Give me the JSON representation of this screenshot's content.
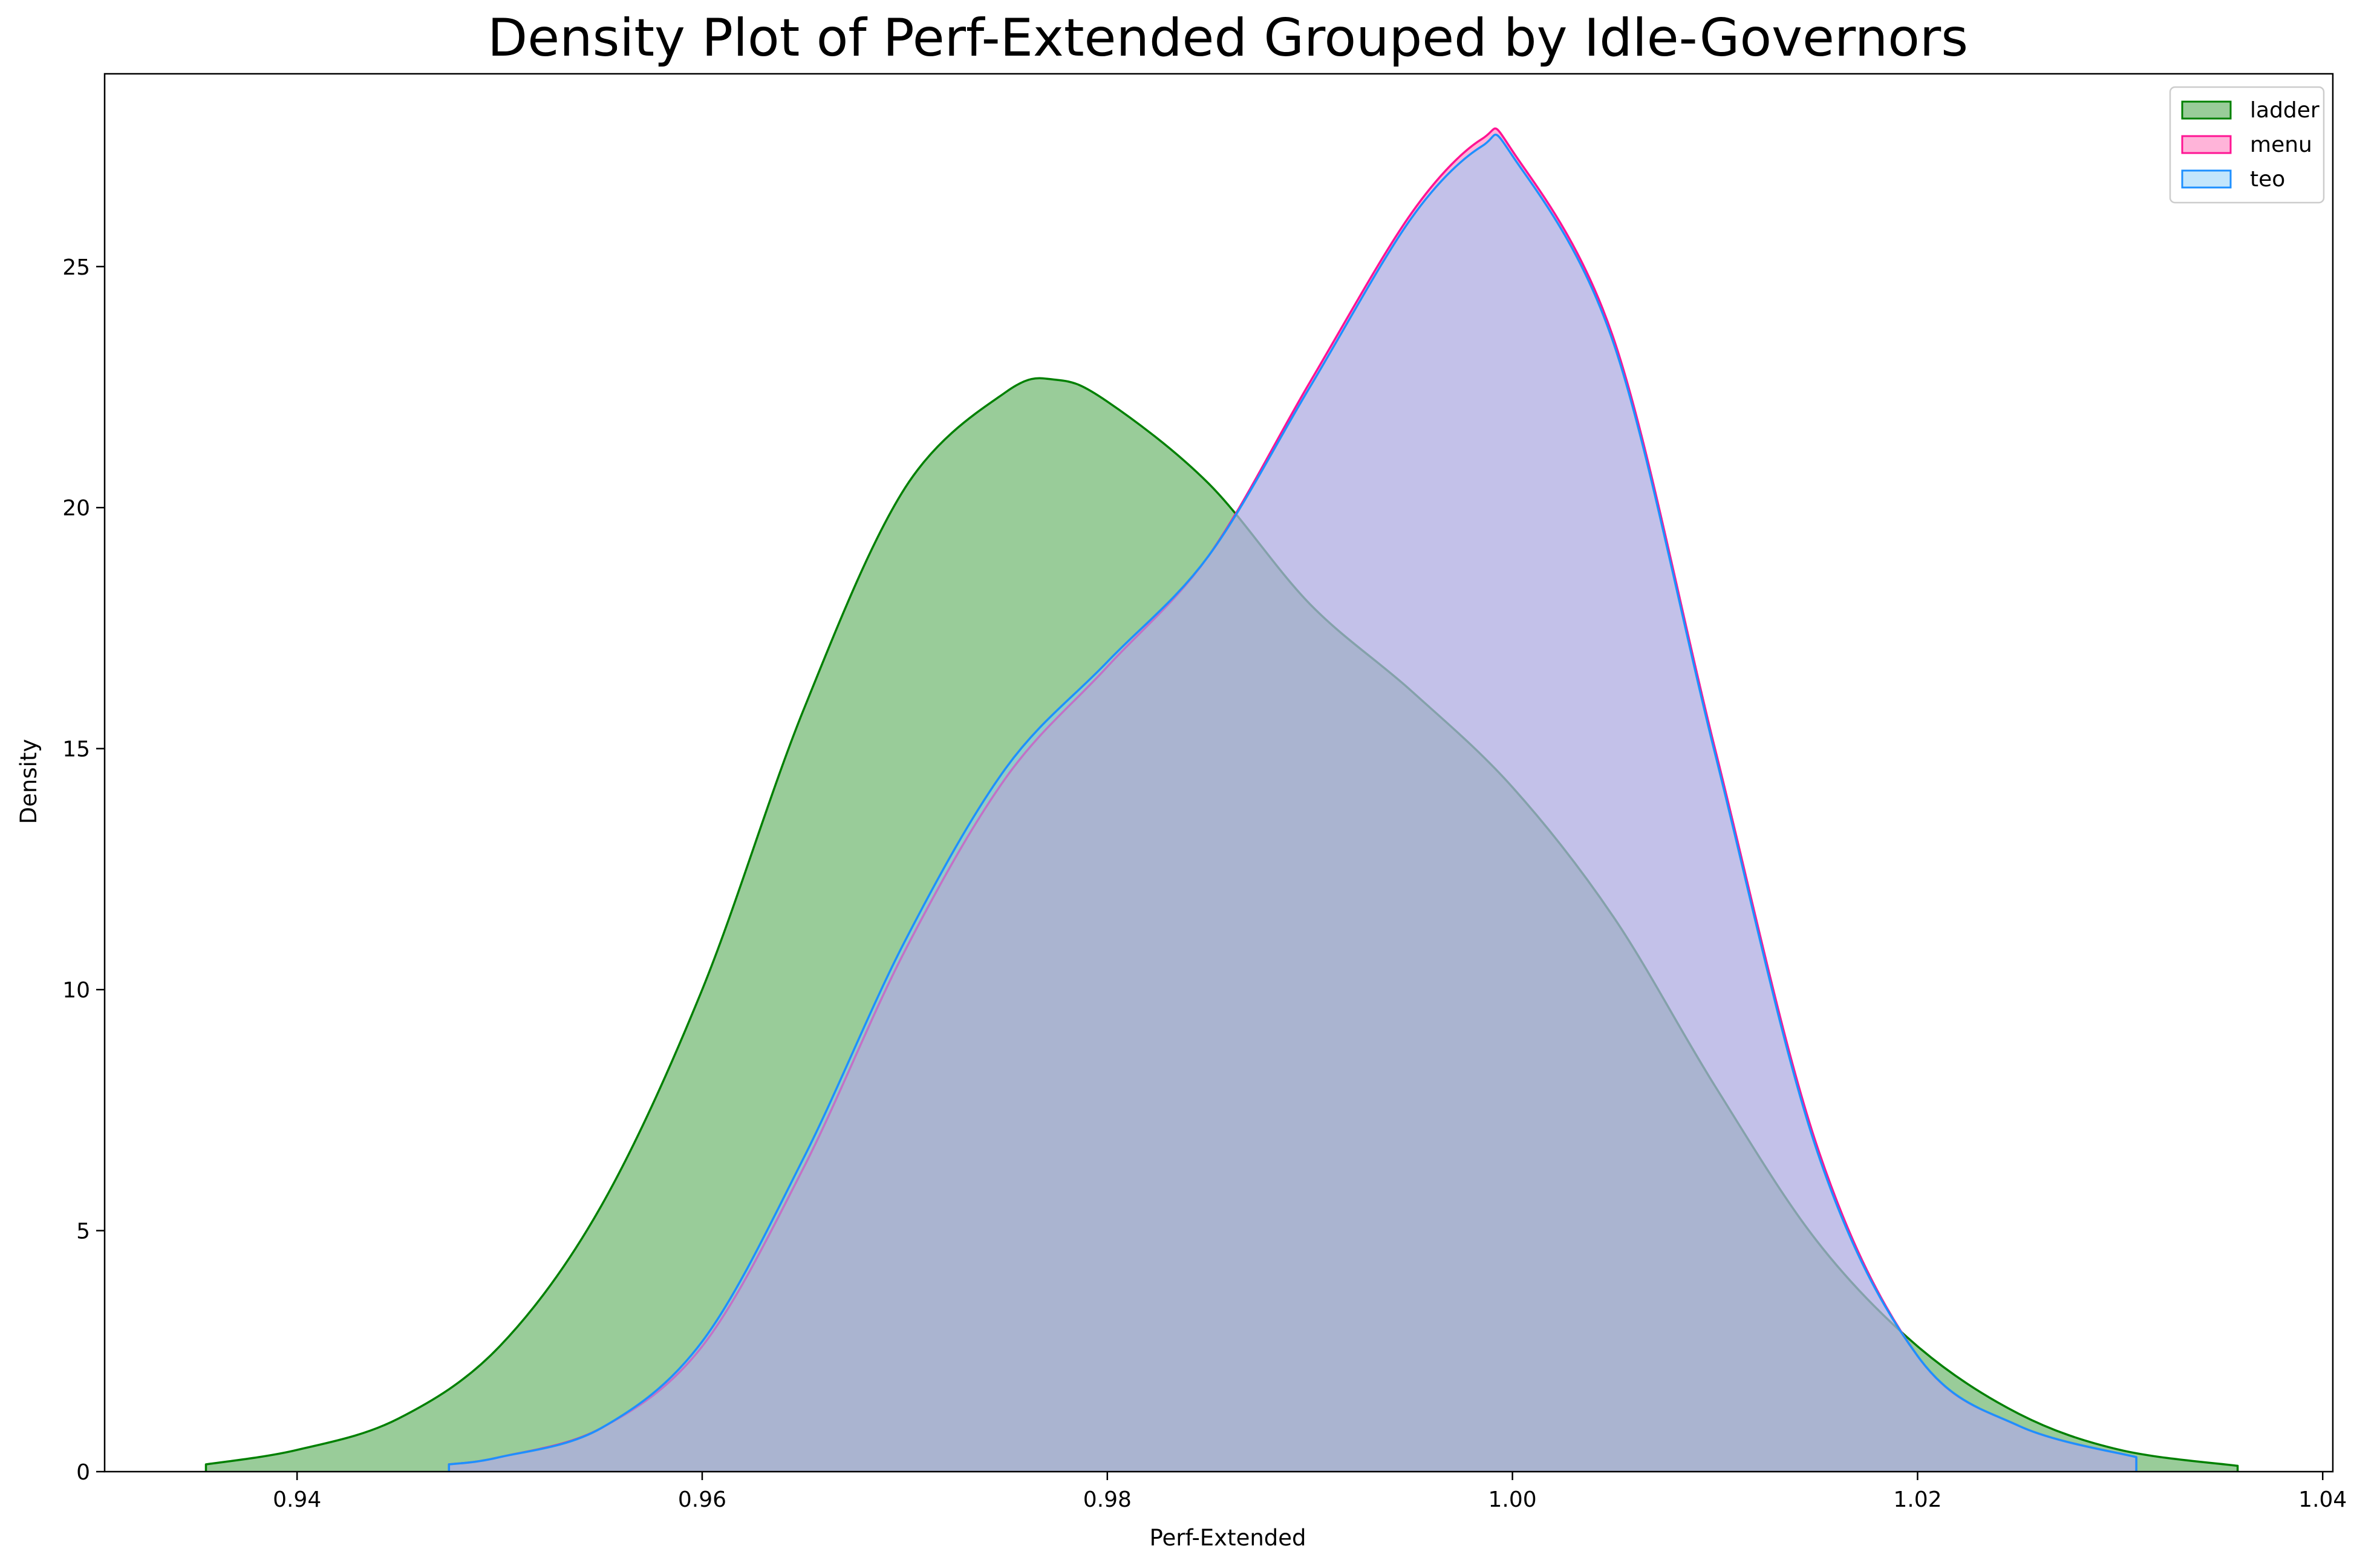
{
  "chart_data": {
    "type": "area",
    "title": "Density Plot of Perf-Extended Grouped by Idle-Governors",
    "xlabel": "Perf-Extended",
    "ylabel": "Density",
    "xlim": [
      0.9305,
      1.0405
    ],
    "ylim": [
      0,
      29.0
    ],
    "xticks": [
      0.94,
      0.96,
      0.98,
      1.0,
      1.02,
      1.04
    ],
    "xtick_labels": [
      "0.94",
      "0.96",
      "0.98",
      "1.00",
      "1.02",
      "1.04"
    ],
    "yticks": [
      0,
      5,
      10,
      15,
      20,
      25
    ],
    "ytick_labels": [
      "0",
      "5",
      "10",
      "15",
      "20",
      "25"
    ],
    "grid": false,
    "legend_position": "top-right",
    "series": [
      {
        "name": "ladder",
        "line_color": "#008000",
        "fill_color": "#339933",
        "fill_opacity": 0.5,
        "x": [
          0.9355,
          0.94,
          0.945,
          0.95,
          0.955,
          0.96,
          0.965,
          0.97,
          0.975,
          0.9775,
          0.98,
          0.985,
          0.99,
          0.995,
          1.0,
          1.005,
          1.01,
          1.015,
          1.02,
          1.025,
          1.03,
          1.0358
        ],
        "y": [
          0.15,
          0.45,
          1.1,
          2.6,
          5.5,
          10.0,
          15.8,
          20.4,
          22.4,
          22.65,
          22.2,
          20.5,
          18.0,
          16.2,
          14.2,
          11.5,
          8.0,
          4.8,
          2.6,
          1.2,
          0.45,
          0.12
        ]
      },
      {
        "name": "menu",
        "line_color": "#ff1493",
        "fill_color": "#ff69b4",
        "fill_opacity": 0.5,
        "x": [
          0.9475,
          0.95,
          0.955,
          0.96,
          0.965,
          0.97,
          0.975,
          0.98,
          0.985,
          0.99,
          0.995,
          0.9985,
          1.0,
          1.005,
          1.01,
          1.015,
          1.02,
          1.025,
          1.0308
        ],
        "y": [
          0.15,
          0.3,
          0.9,
          2.6,
          6.3,
          10.8,
          14.4,
          16.7,
          19.0,
          22.6,
          26.1,
          27.65,
          27.4,
          23.5,
          15.0,
          6.8,
          2.4,
          0.95,
          0.3
        ]
      },
      {
        "name": "teo",
        "line_color": "#1e90ff",
        "fill_color": "#87cefa",
        "fill_opacity": 0.5,
        "x": [
          0.9475,
          0.95,
          0.955,
          0.96,
          0.965,
          0.97,
          0.975,
          0.98,
          0.985,
          0.99,
          0.995,
          0.9985,
          1.0,
          1.005,
          1.01,
          1.015,
          1.02,
          1.025,
          1.0308
        ],
        "y": [
          0.15,
          0.3,
          0.9,
          2.7,
          6.5,
          11.0,
          14.6,
          16.8,
          19.0,
          22.5,
          26.0,
          27.5,
          27.3,
          23.4,
          14.9,
          6.7,
          2.4,
          0.95,
          0.3
        ]
      }
    ]
  }
}
